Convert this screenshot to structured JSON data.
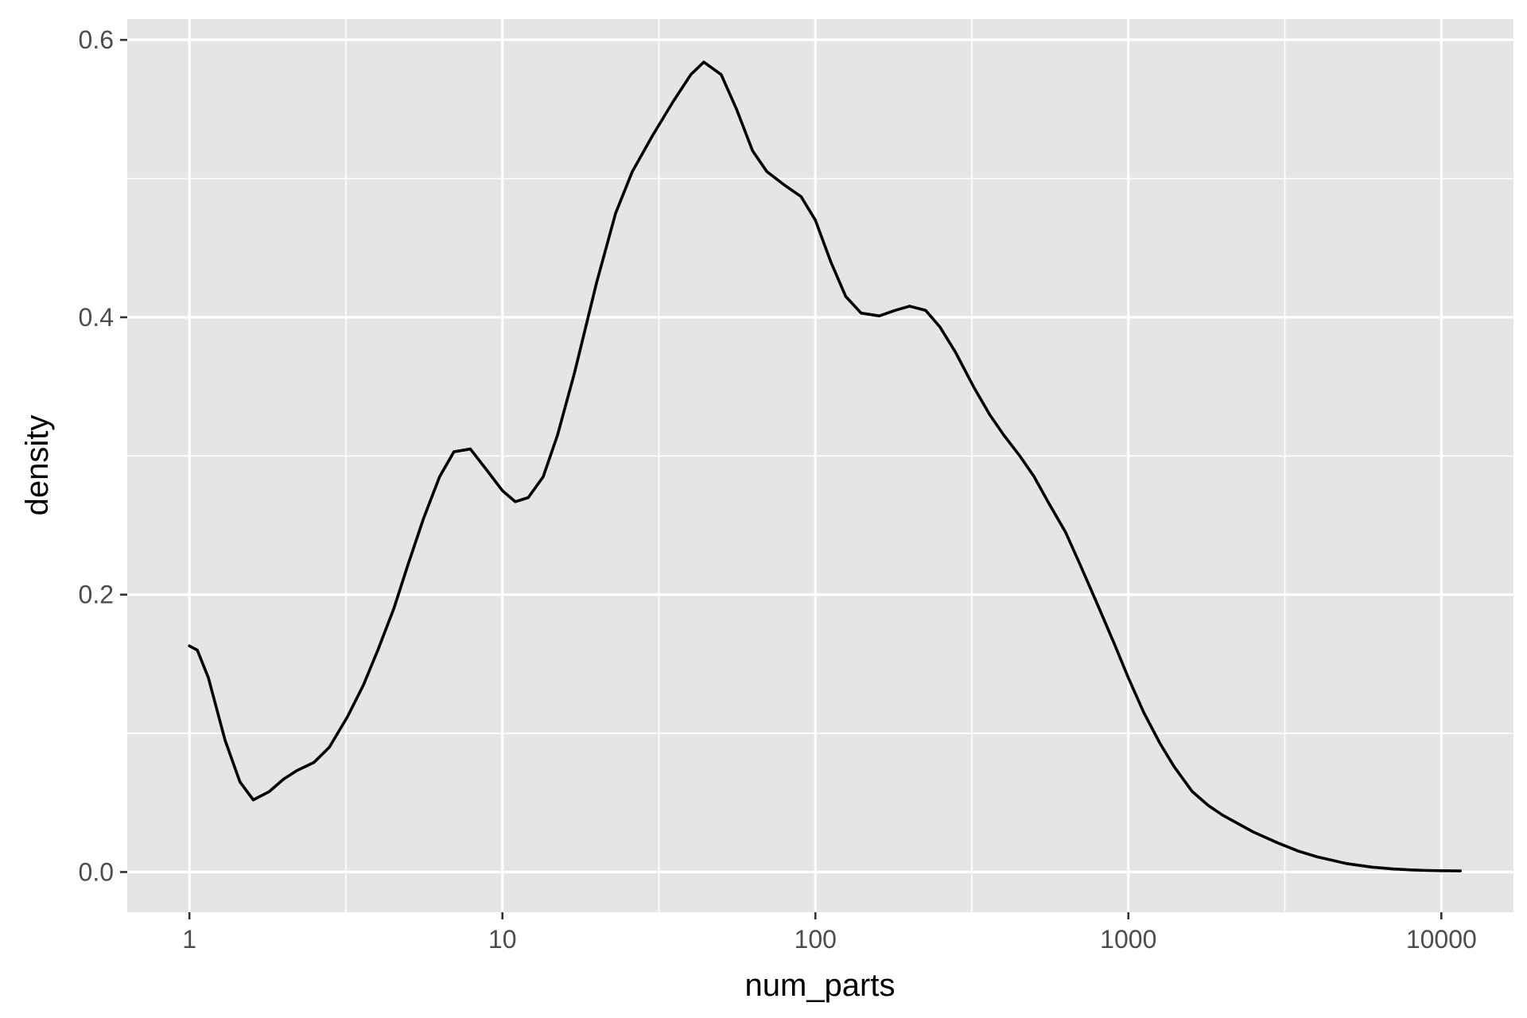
{
  "chart_data": {
    "type": "line",
    "title": "",
    "xlabel": "num_parts",
    "ylabel": "density",
    "x_scale": "log10",
    "xlim": [
      0.633,
      17000
    ],
    "ylim": [
      -0.029,
      0.615
    ],
    "x_ticks": [
      {
        "value": 1,
        "label": "1"
      },
      {
        "value": 10,
        "label": "10"
      },
      {
        "value": 100,
        "label": "100"
      },
      {
        "value": 1000,
        "label": "1000"
      },
      {
        "value": 10000,
        "label": "10000"
      }
    ],
    "x_minor_ticks": [
      3.162,
      31.62,
      316.2,
      3162
    ],
    "y_ticks": [
      {
        "value": 0.0,
        "label": "0.0"
      },
      {
        "value": 0.2,
        "label": "0.2"
      },
      {
        "value": 0.4,
        "label": "0.4"
      },
      {
        "value": 0.6,
        "label": "0.6"
      }
    ],
    "y_minor_ticks": [
      0.1,
      0.3,
      0.5
    ],
    "grid": true,
    "legend": "none",
    "colors": {
      "panel": "#e5e5e5",
      "grid": "#ffffff",
      "line": "#000000",
      "tick_label": "#4d4d4d",
      "axis_title": "#000000"
    },
    "series": [
      {
        "x": [
          1,
          1.06,
          1.15,
          1.3,
          1.45,
          1.6,
          1.8,
          2.0,
          2.2,
          2.5,
          2.8,
          3.2,
          3.6,
          4.0,
          4.5,
          5.0,
          5.6,
          6.3,
          7.0,
          7.9,
          8.9,
          10,
          11,
          12.1,
          13.5,
          15,
          17,
          20,
          23,
          26,
          30,
          35,
          40,
          44,
          50,
          56,
          63,
          70,
          80,
          90,
          100,
          112,
          125,
          140,
          160,
          180,
          200,
          225,
          250,
          280,
          320,
          360,
          400,
          450,
          500,
          560,
          630,
          700,
          800,
          900,
          1000,
          1120,
          1260,
          1400,
          1600,
          1800,
          2000,
          2500,
          3000,
          3500,
          4000,
          5000,
          6000,
          7000,
          8000,
          9000,
          10000,
          11500
        ],
        "y": [
          0.163,
          0.16,
          0.14,
          0.095,
          0.065,
          0.052,
          0.058,
          0.067,
          0.073,
          0.079,
          0.09,
          0.112,
          0.135,
          0.16,
          0.19,
          0.222,
          0.255,
          0.285,
          0.303,
          0.305,
          0.29,
          0.275,
          0.267,
          0.27,
          0.285,
          0.315,
          0.36,
          0.425,
          0.475,
          0.505,
          0.53,
          0.555,
          0.575,
          0.584,
          0.575,
          0.55,
          0.52,
          0.505,
          0.495,
          0.487,
          0.47,
          0.44,
          0.415,
          0.403,
          0.401,
          0.405,
          0.408,
          0.405,
          0.393,
          0.375,
          0.35,
          0.33,
          0.315,
          0.3,
          0.285,
          0.265,
          0.245,
          0.222,
          0.192,
          0.165,
          0.14,
          0.115,
          0.093,
          0.076,
          0.058,
          0.048,
          0.041,
          0.029,
          0.021,
          0.015,
          0.011,
          0.006,
          0.0035,
          0.0022,
          0.0015,
          0.0011,
          0.0009,
          0.0008
        ]
      }
    ]
  }
}
